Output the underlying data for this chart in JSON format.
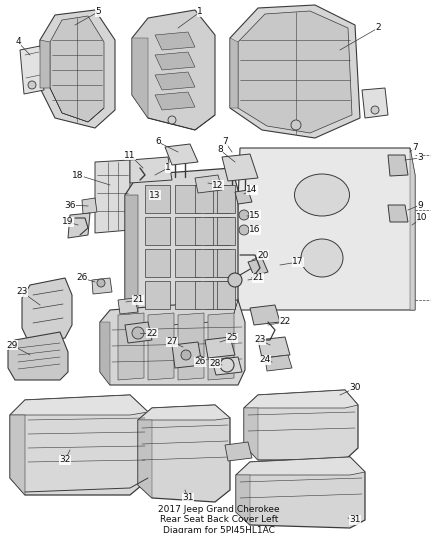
{
  "title": "2017 Jeep Grand Cherokee\nRear Seat Back Cover Left\nDiagram for 5PJ45HL1AC",
  "title_fontsize": 6.5,
  "bg_color": "#ffffff",
  "line_color": "#3a3a3a",
  "fill_light": "#e8e8e8",
  "fill_mid": "#d8d8d8",
  "fill_dark": "#c8c8c8",
  "text_color": "#111111",
  "label_fontsize": 6.5,
  "fig_width": 4.38,
  "fig_height": 5.33,
  "dpi": 100
}
